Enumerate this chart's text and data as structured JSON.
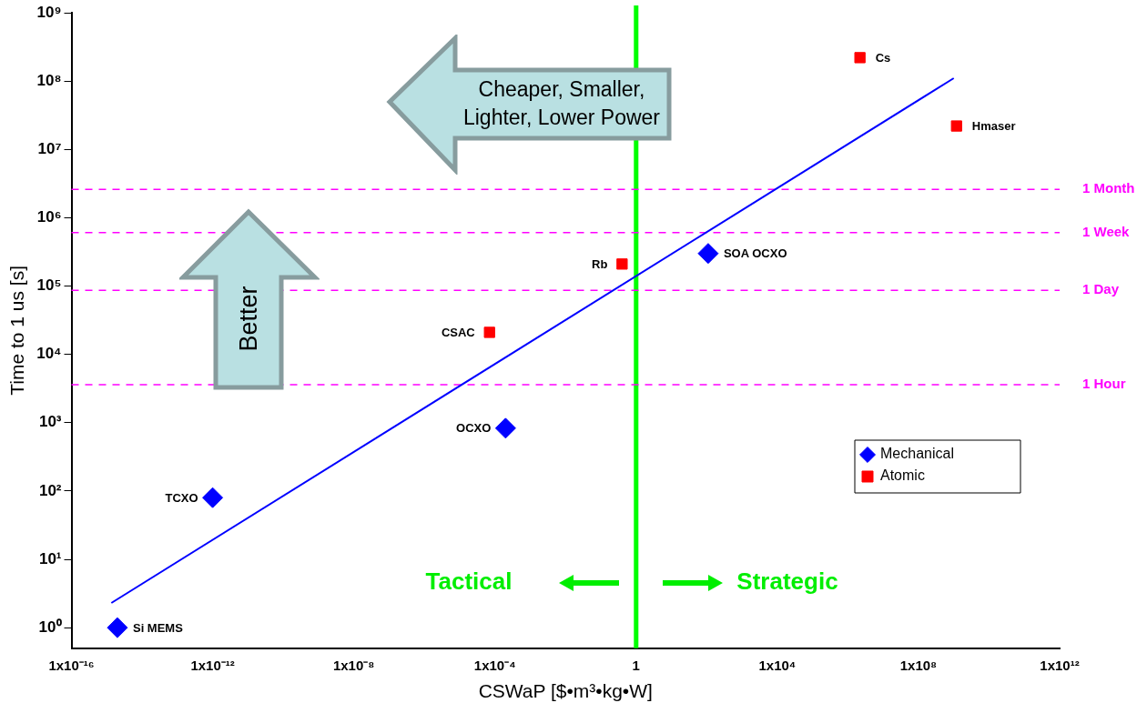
{
  "chart_data": {
    "type": "scatter",
    "xlabel": "CSWaP [$•m³•kg•W]",
    "ylabel": "Time to 1 us [s]",
    "log": "xy",
    "grid": false,
    "legend": "right",
    "xlim": [
      1e-16,
      1000000000000.0
    ],
    "ylim": [
      0.5,
      1000000000.0
    ],
    "xticks": [
      {
        "value": 1e-16,
        "label": "1x10⁻¹⁶"
      },
      {
        "value": 1e-12,
        "label": "1x10⁻¹²"
      },
      {
        "value": 1e-08,
        "label": "1x10⁻⁸"
      },
      {
        "value": 0.0001,
        "label": "1x10⁻⁴"
      },
      1,
      {
        "value": 10000.0,
        "label": "1x10⁴"
      },
      {
        "value": 100000000.0,
        "label": "1x10⁸"
      },
      {
        "value": 1000000000000.0,
        "label": "1x10¹²"
      }
    ],
    "yticks": [
      {
        "value": 1,
        "label": "10⁰"
      },
      {
        "value": 10,
        "label": "10¹"
      },
      {
        "value": 100,
        "label": "10²"
      },
      {
        "value": 1000,
        "label": "10³"
      },
      {
        "value": 10000,
        "label": "10⁴"
      },
      {
        "value": 100000,
        "label": "10⁵"
      },
      {
        "value": 1000000,
        "label": "10⁶"
      },
      {
        "value": 10000000,
        "label": "10⁷"
      },
      {
        "value": 100000000,
        "label": "10⁸"
      },
      {
        "value": 1000000000,
        "label": "10⁹"
      }
    ],
    "series": [
      {
        "name": "Mechanical",
        "color": "#0000ff",
        "marker": "diamond",
        "x": [
          2e-15,
          1e-12,
          0.0002,
          110
        ],
        "values": [
          1,
          80,
          830,
          300000
        ]
      },
      {
        "name": "Atomic",
        "color": "#ff0000",
        "marker": "square",
        "x": [
          0.4,
          7e-05,
          2200000.0,
          1200000000.0
        ],
        "values": [
          210000,
          21000,
          220000000,
          22000000
        ]
      },
      {
        "type": "line",
        "color": "#0000ff",
        "marker": "none",
        "x": [
          1.35e-15,
          1000000000.0
        ],
        "values": [
          2.3,
          110000000
        ]
      }
    ],
    "ref_lines": [
      {
        "axis": "x",
        "value": 1,
        "color": "#00ff00",
        "line_style": "solid"
      },
      {
        "axis": "y",
        "value": 2592000,
        "label": "1 Month",
        "color": "#ff00ff",
        "line_style": "dashed"
      },
      {
        "axis": "y",
        "value": 604800,
        "label": "1 Week",
        "color": "#ff00ff",
        "line_style": "dashed"
      },
      {
        "axis": "y",
        "value": 86400,
        "label": "1 Day",
        "color": "#ff00ff",
        "line_style": "dashed"
      },
      {
        "axis": "y",
        "value": 3600,
        "label": "1 Hour",
        "color": "#ff00ff",
        "line_style": "dashed"
      }
    ],
    "annotations": [
      {
        "text": "Si MEMS",
        "x": 2e-15,
        "y": 1
      },
      {
        "text": "TCXO",
        "x": 1e-12,
        "y": 80
      },
      {
        "text": "OCXO",
        "x": 0.0002,
        "y": 830
      },
      {
        "text": "SOA OCXO",
        "x": 110,
        "y": 300000
      },
      {
        "text": "Rb",
        "x": 0.4,
        "y": 210000
      },
      {
        "text": "CSAC",
        "x": 7e-05,
        "y": 21000
      },
      {
        "text": "Cs",
        "x": 2200000.0,
        "y": 220000000
      },
      {
        "text": "Hmaser",
        "x": 1200000000.0,
        "y": 22000000
      },
      "Cheaper, Smaller, Lighter, Lower Power",
      "Better",
      "Tactical",
      "Strategic"
    ]
  }
}
